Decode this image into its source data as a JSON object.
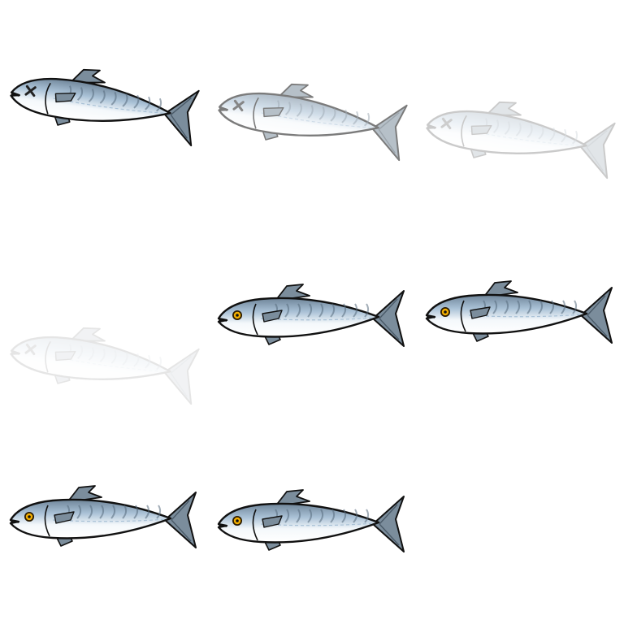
{
  "sheet": {
    "title": "",
    "background": "#ffffff"
  },
  "palette": {
    "outline": "#111111",
    "back_dark": "#6f8599",
    "back_mid": "#a9c1d6",
    "belly": "#f4f8fb",
    "stripe": "#55697c",
    "fin": "#7b8d9c",
    "fin_dark": "#4a5a68",
    "eye_ring": "#2a1a00",
    "eye_iris": "#f5b000",
    "eye_pupil": "#111111",
    "dead_mark": "#222222"
  },
  "frames": [
    {
      "name": "fish-dead-frame-1",
      "state": "dead",
      "eye": "x-mark-icon",
      "opacity": 1.0,
      "tilt_deg": 8
    },
    {
      "name": "fish-dead-frame-2",
      "state": "dead",
      "eye": "x-mark-icon",
      "opacity": 0.55,
      "tilt_deg": 8
    },
    {
      "name": "fish-dead-frame-3",
      "state": "dead",
      "eye": "x-mark-icon",
      "opacity": 0.22,
      "tilt_deg": 8
    },
    {
      "name": "fish-dead-frame-4",
      "state": "dead",
      "eye": "x-mark-icon",
      "opacity": 0.1,
      "tilt_deg": 8
    },
    {
      "name": "fish-alive-frame-1",
      "state": "alive",
      "eye": "open-eye-icon",
      "opacity": 1.0,
      "tilt_deg": 0
    },
    {
      "name": "fish-alive-frame-2",
      "state": "alive",
      "eye": "open-eye-icon",
      "opacity": 1.0,
      "tilt_deg": 0
    },
    {
      "name": "fish-alive-frame-3",
      "state": "alive",
      "eye": "open-eye-icon",
      "opacity": 1.0,
      "tilt_deg": 0
    },
    {
      "name": "fish-alive-frame-4",
      "state": "alive",
      "eye": "open-eye-icon",
      "opacity": 1.0,
      "tilt_deg": 0
    }
  ]
}
